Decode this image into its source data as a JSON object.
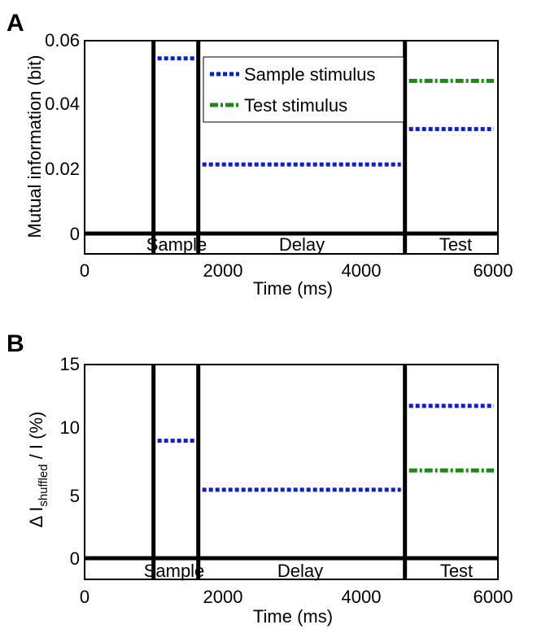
{
  "panels": [
    {
      "panel_label": "A",
      "ylabel": "Mutual information (bit)",
      "xlabel": "Time (ms)",
      "y_ticks": [
        "0",
        "0.02",
        "0.04",
        "0.06"
      ],
      "x_ticks": [
        "0",
        "2000",
        "4000",
        "6000"
      ],
      "epochs": [
        "Sample",
        "Delay",
        "Test"
      ],
      "legend": [
        "Sample stimulus",
        "Test stimulus"
      ]
    },
    {
      "panel_label": "B",
      "ylabel_prefix": "Δ I",
      "ylabel_sub": "shuffled",
      "ylabel_suffix": " / I (%)",
      "xlabel": "Time (ms)",
      "y_ticks": [
        "0",
        "5",
        "10",
        "15"
      ],
      "x_ticks": [
        "0",
        "2000",
        "4000",
        "6000"
      ],
      "epochs": [
        "Sample",
        "Delay",
        "Test"
      ]
    }
  ],
  "chart_data": [
    {
      "type": "line",
      "title": "",
      "xlabel": "Time (ms)",
      "ylabel": "Mutual information (bit)",
      "xlim": [
        0,
        6000
      ],
      "ylim": [
        -0.007,
        0.06
      ],
      "y_ticks": [
        0,
        0.02,
        0.04,
        0.06
      ],
      "x_ticks": [
        0,
        2000,
        4000,
        6000
      ],
      "grid": false,
      "legend_position": "top-center",
      "epoch_boundaries": [
        1000,
        1650,
        4650
      ],
      "epochs": [
        {
          "name": "Sample",
          "start": 1000,
          "end": 1650
        },
        {
          "name": "Delay",
          "start": 1650,
          "end": 4650
        },
        {
          "name": "Test",
          "start": 4650,
          "end": 6000
        }
      ],
      "series": [
        {
          "name": "Sample stimulus",
          "style": "dotted",
          "color": "#0a1be6",
          "segments": [
            {
              "x": [
                1000,
                1650
              ],
              "y": 0.0545
            },
            {
              "x": [
                1650,
                4650
              ],
              "y": 0.0215
            },
            {
              "x": [
                4650,
                6000
              ],
              "y": 0.0325
            }
          ]
        },
        {
          "name": "Test stimulus",
          "style": "dashdot",
          "color": "#1a8a12",
          "segments": [
            {
              "x": [
                4650,
                6000
              ],
              "y": 0.0475
            }
          ]
        }
      ]
    },
    {
      "type": "line",
      "title": "",
      "xlabel": "Time (ms)",
      "xlim": [
        0,
        6000
      ],
      "ylim": [
        -1.8,
        15
      ],
      "y_ticks": [
        0,
        5,
        10,
        15
      ],
      "x_ticks": [
        0,
        2000,
        4000,
        6000
      ],
      "grid": false,
      "epoch_boundaries": [
        1000,
        1650,
        4650
      ],
      "epochs": [
        {
          "name": "Sample",
          "start": 1000,
          "end": 1650
        },
        {
          "name": "Delay",
          "start": 1650,
          "end": 4650
        },
        {
          "name": "Test",
          "start": 4650,
          "end": 6000
        }
      ],
      "series": [
        {
          "style": "dotted",
          "color": "#0a1be6",
          "segments": [
            {
              "x": [
                1000,
                1650
              ],
              "y": 9.1
            },
            {
              "x": [
                1650,
                4650
              ],
              "y": 5.3
            },
            {
              "x": [
                4650,
                6000
              ],
              "y": 11.8
            }
          ]
        },
        {
          "style": "dashdot",
          "color": "#1a8a12",
          "segments": [
            {
              "x": [
                4650,
                6000
              ],
              "y": 6.8
            }
          ]
        }
      ]
    }
  ]
}
